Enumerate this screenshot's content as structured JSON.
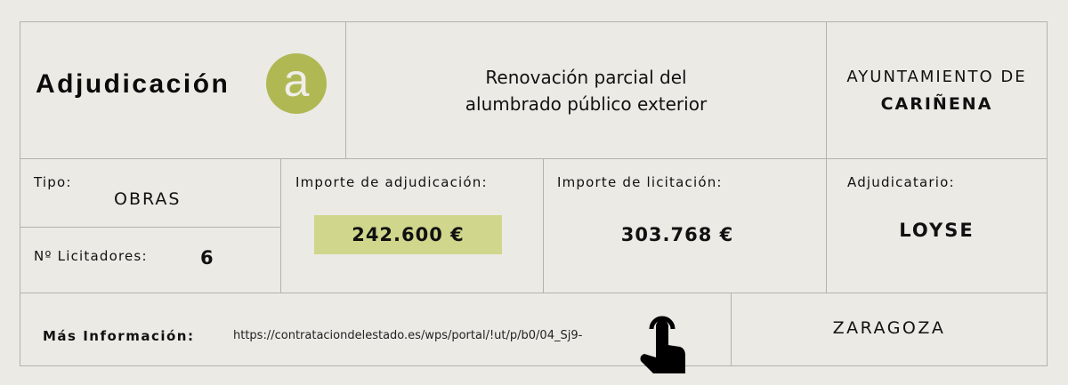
{
  "header": {
    "title": "Adjudicación",
    "badge_letter": "a",
    "project_line1": "Renovación parcial del",
    "project_line2": "alumbrado público exterior",
    "authority_line1": "AYUNTAMIENTO DE",
    "authority_line2": "CARIÑENA"
  },
  "details": {
    "tipo_label": "Tipo:",
    "tipo_value": "OBRAS",
    "licitadores_label": "Nº Licitadores:",
    "licitadores_value": "6",
    "adjudicacion_label": "Importe de adjudicación:",
    "adjudicacion_value": "242.600 €",
    "licitacion_label": "Importe de licitación:",
    "licitacion_value": "303.768 €",
    "adjudicatario_label": "Adjudicatario:",
    "adjudicatario_value": "LOYSE"
  },
  "footer": {
    "info_label": "Más Información:",
    "url": "https://contrataciondelestado.es/wps/portal/!ut/p/b0/04_Sj9-",
    "province": "ZARAGOZA",
    "icon": "pointing-hand-icon"
  },
  "colors": {
    "accent": "#b0b853",
    "highlight": "#d0d68c",
    "background": "#ebeae5"
  }
}
